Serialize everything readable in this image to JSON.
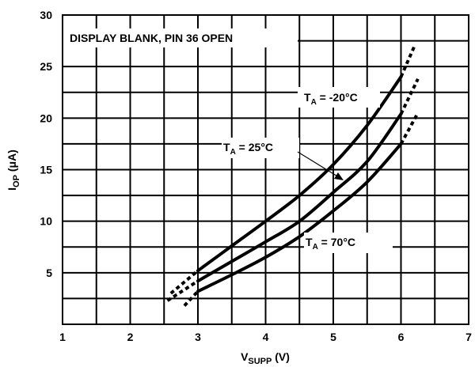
{
  "chart_data": {
    "type": "line",
    "title": "",
    "xlabel": {
      "main": "V",
      "sub": "SUPP",
      "unit": " (V)"
    },
    "ylabel": {
      "main": "I",
      "sub": "OP",
      "unit": " (μA)"
    },
    "xlim": [
      1,
      7
    ],
    "ylim": [
      0,
      30
    ],
    "x_ticks": [
      "1",
      "2",
      "3",
      "4",
      "5",
      "6",
      "7"
    ],
    "y_ticks": [
      "5",
      "10",
      "15",
      "20",
      "25",
      "30"
    ],
    "x_grid_step": 0.5,
    "y_grid_step": 2.5,
    "grid": true,
    "annotation": "DISPLAY BLANK, PIN 36 OPEN",
    "series": [
      {
        "name": {
          "main": "T",
          "sub": "A",
          "rest": " = -20°C"
        },
        "x": [
          3.0,
          3.5,
          4.0,
          4.5,
          5.0,
          5.5,
          6.0
        ],
        "y": [
          5.2,
          7.6,
          10.0,
          12.5,
          15.5,
          19.3,
          24.0
        ],
        "dotted_low": {
          "x": [
            2.6,
            3.0
          ],
          "y": [
            3.0,
            5.2
          ]
        },
        "dotted_high": {
          "x": [
            6.0,
            6.2
          ],
          "y": [
            24.0,
            27.0
          ]
        }
      },
      {
        "name": {
          "main": "T",
          "sub": "A",
          "rest": " = 25°C"
        },
        "x": [
          3.0,
          3.5,
          4.0,
          4.5,
          5.0,
          5.5,
          6.0
        ],
        "y": [
          4.2,
          6.1,
          8.0,
          10.0,
          12.8,
          15.8,
          20.4
        ],
        "dotted_low": {
          "x": [
            2.55,
            3.0
          ],
          "y": [
            2.3,
            4.2
          ]
        },
        "dotted_high": {
          "x": [
            6.0,
            6.25
          ],
          "y": [
            20.4,
            23.8
          ]
        }
      },
      {
        "name": {
          "main": "T",
          "sub": "A",
          "rest": " = 70°C"
        },
        "x": [
          3.0,
          3.5,
          4.0,
          4.5,
          5.0,
          5.5,
          6.0
        ],
        "y": [
          3.2,
          4.8,
          6.5,
          8.5,
          11.0,
          13.8,
          17.5
        ],
        "dotted_low": {
          "x": [
            2.8,
            3.0
          ],
          "y": [
            1.8,
            3.2
          ]
        },
        "dotted_high": {
          "x": [
            6.0,
            6.25
          ],
          "y": [
            17.5,
            20.5
          ]
        }
      }
    ]
  }
}
